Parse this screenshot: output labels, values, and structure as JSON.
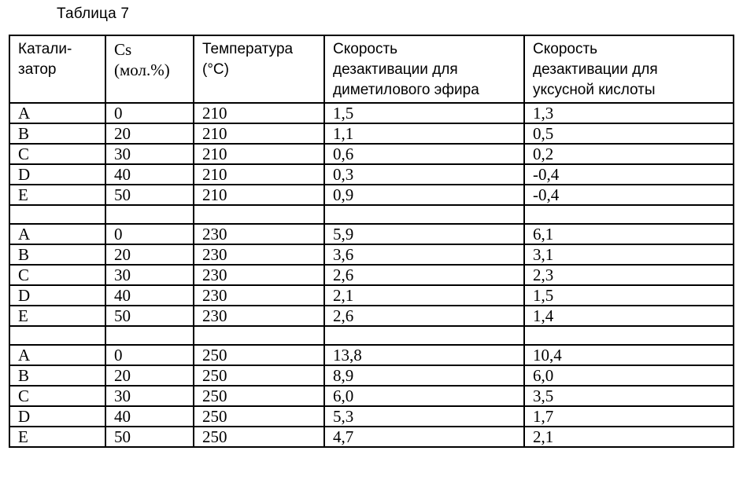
{
  "caption": "Таблица 7",
  "table": {
    "headers": [
      [
        "Катали-",
        "затор"
      ],
      [
        "Cs",
        "(мол.%)"
      ],
      [
        "Температура",
        "(°C)"
      ],
      [
        "Скорость",
        "дезактивации для",
        "диметилового эфира"
      ],
      [
        "Скорость",
        "дезактивации для",
        "уксусной кислоты"
      ]
    ],
    "rows": [
      [
        "A",
        "0",
        "210",
        "1,5",
        "1,3"
      ],
      [
        "B",
        "20",
        "210",
        "1,1",
        "0,5"
      ],
      [
        "C",
        "30",
        "210",
        "0,6",
        "0,2"
      ],
      [
        "D",
        "40",
        "210",
        "0,3",
        "-0,4"
      ],
      [
        "E",
        "50",
        "210",
        "0,9",
        "-0,4"
      ],
      [
        "",
        "",
        "",
        "",
        ""
      ],
      [
        "A",
        "0",
        "230",
        "5,9",
        "6,1"
      ],
      [
        "B",
        "20",
        "230",
        "3,6",
        "3,1"
      ],
      [
        "C",
        "30",
        "230",
        "2,6",
        "2,3"
      ],
      [
        "D",
        "40",
        "230",
        "2,1",
        "1,5"
      ],
      [
        "E",
        "50",
        "230",
        "2,6",
        "1,4"
      ],
      [
        "",
        "",
        "",
        "",
        ""
      ],
      [
        "A",
        "0",
        "250",
        "13,8",
        "10,4"
      ],
      [
        "B",
        "20",
        "250",
        "8,9",
        "6,0"
      ],
      [
        "C",
        "30",
        "250",
        "6,0",
        "3,5"
      ],
      [
        "D",
        "40",
        "250",
        "5,3",
        "1,7"
      ],
      [
        "E",
        "50",
        "250",
        "4,7",
        "2,1"
      ]
    ]
  }
}
